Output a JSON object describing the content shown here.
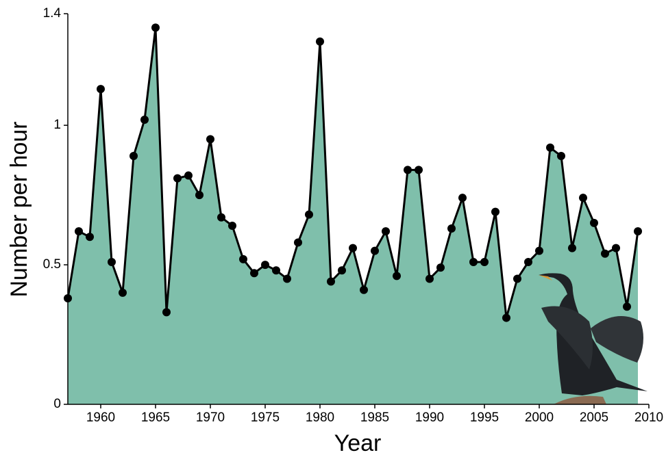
{
  "chart_data": {
    "type": "area",
    "xlabel": "Year",
    "ylabel": "Number per hour",
    "x": [
      1957,
      1958,
      1959,
      1960,
      1961,
      1962,
      1963,
      1964,
      1965,
      1966,
      1967,
      1968,
      1969,
      1970,
      1971,
      1972,
      1973,
      1974,
      1975,
      1976,
      1977,
      1978,
      1979,
      1980,
      1981,
      1982,
      1983,
      1984,
      1985,
      1986,
      1987,
      1988,
      1989,
      1990,
      1991,
      1992,
      1993,
      1994,
      1995,
      1996,
      1997,
      1998,
      1999,
      2000,
      2001,
      2002,
      2003,
      2004,
      2005,
      2006,
      2007,
      2008,
      2009
    ],
    "values": [
      0.38,
      0.62,
      0.6,
      1.13,
      0.51,
      0.4,
      0.89,
      1.02,
      1.35,
      0.33,
      0.81,
      0.82,
      0.75,
      0.95,
      0.67,
      0.64,
      0.52,
      0.47,
      0.5,
      0.48,
      0.45,
      0.58,
      0.68,
      1.3,
      0.44,
      0.48,
      0.56,
      0.41,
      0.55,
      0.62,
      0.46,
      0.84,
      0.84,
      0.45,
      0.49,
      0.63,
      0.74,
      0.51,
      0.51,
      0.69,
      0.31,
      0.45,
      0.51,
      0.55,
      0.92,
      0.89,
      0.56,
      0.74,
      0.65,
      0.54,
      0.56,
      0.35,
      0.62
    ],
    "color": "#7fbfab",
    "line_color": "#000000",
    "xlim": [
      1957,
      2010
    ],
    "xticks": [
      1960,
      1965,
      1970,
      1975,
      1980,
      1985,
      1990,
      1995,
      2000,
      2005,
      2010
    ],
    "ylim": [
      0,
      1.4
    ],
    "yticks": [
      0,
      0.5,
      1,
      1.4
    ]
  }
}
